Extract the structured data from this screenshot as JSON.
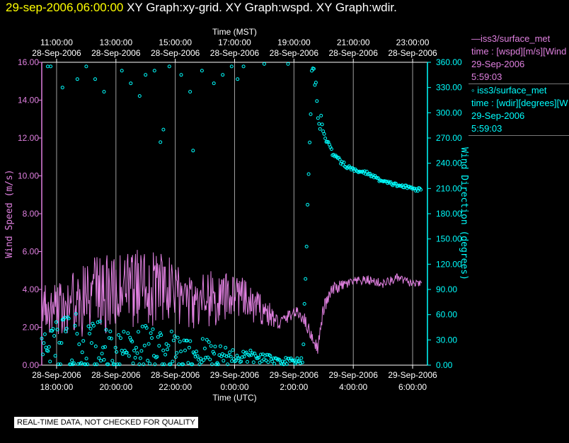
{
  "header": {
    "datetime": "29-sep-2006,06:00:00",
    "graphs": "XY Graph:xy-grid.  XY Graph:wspd.  XY Graph:wdir."
  },
  "notice": "REAL-TIME DATA, NOT CHECKED FOR QUALITY",
  "legend": {
    "wspd": {
      "name": "iss3/surface_met",
      "var": "time : [wspd][m/s][Wind",
      "date": "29-Sep-2006",
      "time": "5:59:03"
    },
    "wdir": {
      "name": "iss3/surface_met",
      "var": "time : [wdir][degrees][W",
      "date": "29-Sep-2006",
      "time": "5:59:03"
    }
  },
  "colors": {
    "wspd": "#e080e0",
    "wdir": "#00ffff",
    "grid": "#a0a0a0"
  },
  "chart_data": {
    "type": "line+scatter",
    "x_top_title": "Time (MST)",
    "x_bottom_title": "Time (UTC)",
    "xlim_hours": [
      -0.5,
      12.5
    ],
    "top_ticks": [
      {
        "h": 0,
        "date": "28-Sep-2006",
        "time": "11:00:00"
      },
      {
        "h": 2,
        "date": "28-Sep-2006",
        "time": "13:00:00"
      },
      {
        "h": 4,
        "date": "28-Sep-2006",
        "time": "15:00:00"
      },
      {
        "h": 6,
        "date": "28-Sep-2006",
        "time": "17:00:00"
      },
      {
        "h": 8,
        "date": "28-Sep-2006",
        "time": "19:00:00"
      },
      {
        "h": 10,
        "date": "28-Sep-2006",
        "time": "21:00:00"
      },
      {
        "h": 12,
        "date": "28-Sep-2006",
        "time": "23:00:00"
      }
    ],
    "bottom_ticks": [
      {
        "h": 0,
        "date": "28-Sep-2006",
        "time": "18:00:00"
      },
      {
        "h": 2,
        "date": "28-Sep-2006",
        "time": "20:00:00"
      },
      {
        "h": 4,
        "date": "28-Sep-2006",
        "time": "22:00:00"
      },
      {
        "h": 6,
        "date": "29-Sep-2006",
        "time": "0:00:00"
      },
      {
        "h": 8,
        "date": "29-Sep-2006",
        "time": "2:00:00"
      },
      {
        "h": 10,
        "date": "29-Sep-2006",
        "time": "4:00:00"
      },
      {
        "h": 12,
        "date": "29-Sep-2006",
        "time": "6:00:00"
      }
    ],
    "left_axis": {
      "label": "Wind Speed (m/s)",
      "ylim": [
        0,
        16
      ],
      "ticks": [
        "0.00",
        "2.00",
        "4.00",
        "6.00",
        "8.00",
        "10.00",
        "12.00",
        "14.00",
        "16.00"
      ]
    },
    "right_axis": {
      "label": "Wind Direction (degrees)",
      "ylim": [
        0,
        360
      ],
      "ticks": [
        "0.00",
        "30.00",
        "60.00",
        "90.00",
        "120.00",
        "150.00",
        "180.00",
        "210.00",
        "240.00",
        "270.00",
        "300.00",
        "330.00",
        "360.00"
      ]
    },
    "wspd_series": {
      "name": "wspd (m/s)",
      "x": [
        -0.5,
        0,
        0.5,
        1,
        1.5,
        2,
        2.5,
        3,
        3.5,
        4,
        4.5,
        5,
        5.5,
        6,
        6.5,
        7,
        7.5,
        8,
        8.3,
        8.6,
        8.8,
        9,
        9.3,
        9.6,
        10,
        10.5,
        11,
        11.5,
        12,
        12.3
      ],
      "y": [
        3.0,
        3.2,
        3.1,
        3.6,
        3.6,
        4.0,
        4.0,
        4.1,
        4.0,
        3.8,
        3.4,
        3.5,
        3.3,
        3.9,
        3.2,
        2.9,
        2.2,
        2.8,
        2.6,
        1.5,
        0.9,
        3.0,
        4.0,
        4.2,
        4.4,
        4.5,
        4.3,
        4.6,
        4.3,
        4.3
      ],
      "amplitude_approx": [
        1.3,
        1.6,
        1.8,
        2.1,
        2.2,
        2.2,
        2.1,
        2.0,
        2.0,
        1.7,
        1.6,
        1.6,
        1.5,
        1.2,
        1.0,
        0.8,
        0.4,
        0.3,
        0.4,
        0.35,
        0.3,
        0.4,
        0.35,
        0.3,
        0.25,
        0.25,
        0.25,
        0.25,
        0.2,
        0.15
      ]
    },
    "wdir_series": {
      "name": "wdir (degrees)",
      "x": [
        -0.5,
        0,
        0.5,
        1,
        1.5,
        2,
        2.5,
        3,
        3.5,
        4,
        4.5,
        5,
        5.5,
        6,
        6.5,
        7,
        7.5,
        8,
        8.3,
        8.6,
        8.9,
        9.0,
        9.3,
        9.6,
        10,
        10.5,
        11,
        11.5,
        12,
        12.3
      ],
      "y": [
        20,
        25,
        28,
        22,
        18,
        20,
        25,
        22,
        18,
        15,
        12,
        15,
        12,
        10,
        10,
        8,
        5,
        5,
        6,
        350,
        290,
        275,
        252,
        240,
        232,
        228,
        218,
        214,
        210,
        208
      ],
      "scatter_approx": [
        25,
        30,
        35,
        35,
        35,
        30,
        30,
        30,
        25,
        25,
        20,
        20,
        15,
        10,
        8,
        6,
        4,
        4,
        4,
        20,
        15,
        3,
        3,
        3,
        2,
        2,
        2,
        2,
        2,
        2
      ],
      "outliers": [
        [
          -0.3,
          355
        ],
        [
          -0.2,
          355
        ],
        [
          0.2,
          330
        ],
        [
          0.7,
          340
        ],
        [
          1.0,
          355
        ],
        [
          1.3,
          340
        ],
        [
          1.6,
          325
        ],
        [
          2.2,
          350
        ],
        [
          2.5,
          335
        ],
        [
          2.8,
          320
        ],
        [
          3.0,
          345
        ],
        [
          3.3,
          350
        ],
        [
          3.5,
          265
        ],
        [
          3.6,
          280
        ],
        [
          3.8,
          355
        ],
        [
          4.2,
          345
        ],
        [
          4.5,
          325
        ],
        [
          4.6,
          255
        ],
        [
          4.9,
          350
        ],
        [
          5.3,
          335
        ],
        [
          5.6,
          345
        ],
        [
          5.9,
          355
        ],
        [
          6.1,
          340
        ],
        [
          6.3,
          355
        ],
        [
          7.0,
          358
        ],
        [
          7.8,
          358
        ]
      ]
    }
  }
}
